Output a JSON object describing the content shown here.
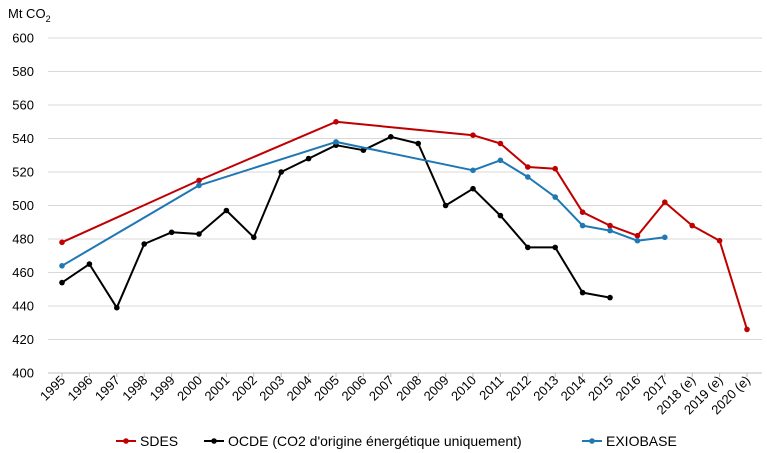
{
  "chart_data": {
    "type": "line",
    "ylabel_prefix": "Mt CO",
    "ylabel_subscript": "2",
    "ylim": [
      400,
      600
    ],
    "yticks": [
      400,
      420,
      440,
      460,
      480,
      500,
      520,
      540,
      560,
      580,
      600
    ],
    "grid": true,
    "legend_position": "bottom",
    "categories": [
      "1995",
      "1996",
      "1997",
      "1998",
      "1999",
      "2000",
      "2001",
      "2002",
      "2003",
      "2004",
      "2005",
      "2006",
      "2007",
      "2008",
      "2009",
      "2010",
      "2011",
      "2012",
      "2013",
      "2014",
      "2015",
      "2016",
      "2017",
      "2018 (e)",
      "2019 (e)",
      "2020 (e)"
    ],
    "series": [
      {
        "name": "SDES",
        "color": "#c00000",
        "values": [
          478,
          null,
          null,
          null,
          null,
          515,
          null,
          null,
          null,
          null,
          550,
          null,
          null,
          null,
          null,
          542,
          537,
          523,
          522,
          496,
          488,
          482,
          502,
          488,
          479,
          426
        ]
      },
      {
        "name": "OCDE (CO2 d'origine énergétique uniquement)",
        "color": "#000000",
        "values": [
          454,
          465,
          439,
          477,
          484,
          483,
          497,
          481,
          520,
          528,
          536,
          533,
          541,
          537,
          500,
          510,
          494,
          475,
          475,
          448,
          445,
          null,
          null,
          null,
          null,
          null
        ]
      },
      {
        "name": "EXIOBASE",
        "color": "#1f77b4",
        "values": [
          464,
          null,
          null,
          null,
          null,
          512,
          null,
          null,
          null,
          null,
          538,
          null,
          null,
          null,
          null,
          521,
          527,
          517,
          505,
          488,
          485,
          479,
          481,
          null,
          null,
          null
        ]
      }
    ]
  }
}
